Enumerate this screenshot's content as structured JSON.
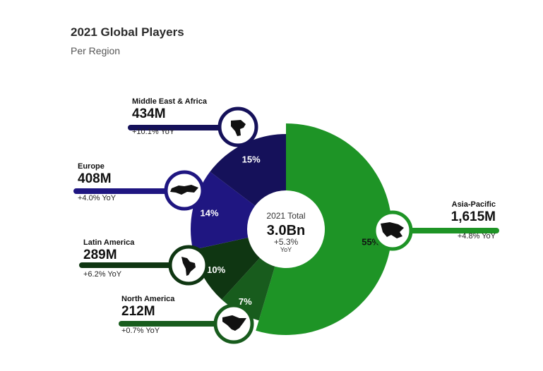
{
  "header": {
    "title": "2021 Global Players",
    "subtitle": "Per Region"
  },
  "center": {
    "label": "2021 Total",
    "value": "3.0Bn",
    "change": "+5.3%",
    "change_unit": "YoY"
  },
  "colors": {
    "asia_pacific": "#1e9426",
    "north_america": "#185c1d",
    "latin_america": "#0f3612",
    "europe": "#1f1681",
    "middle_east_africa": "#15115a"
  },
  "chart_data": {
    "type": "pie",
    "variant": "donut",
    "title": "2021 Global Players",
    "subtitle": "Per Region",
    "total": "3.0Bn",
    "total_change": "+5.3% YoY",
    "categories": [
      "Asia-Pacific",
      "North America",
      "Latin America",
      "Europe",
      "Middle East & Africa"
    ],
    "values": [
      1615,
      212,
      289,
      408,
      434
    ],
    "value_unit": "M",
    "percent_labels": [
      "55%",
      "7%",
      "10%",
      "14%",
      "15%"
    ],
    "slices": [
      {
        "key": "asia_pacific",
        "name": "Asia-Pacific",
        "value_label": "1,615M",
        "percent": "55%",
        "yoy": "+4.8% YoY",
        "icon": "asia-map-icon",
        "color": "#1e9426"
      },
      {
        "key": "north_america",
        "name": "North America",
        "value_label": "212M",
        "percent": "7%",
        "yoy": "+0.7% YoY",
        "icon": "north-america-map-icon",
        "color": "#185c1d"
      },
      {
        "key": "latin_america",
        "name": "Latin America",
        "value_label": "289M",
        "percent": "10%",
        "yoy": "+6.2% YoY",
        "icon": "latin-america-map-icon",
        "color": "#0f3612"
      },
      {
        "key": "europe",
        "name": "Europe",
        "value_label": "408M",
        "percent": "14%",
        "yoy": "+4.0% YoY",
        "icon": "europe-map-icon",
        "color": "#1f1681"
      },
      {
        "key": "middle_east_africa",
        "name": "Middle East & Africa",
        "value_label": "434M",
        "percent": "15%",
        "yoy": "+10.1% YoY",
        "icon": "africa-map-icon",
        "color": "#15115a"
      }
    ]
  }
}
